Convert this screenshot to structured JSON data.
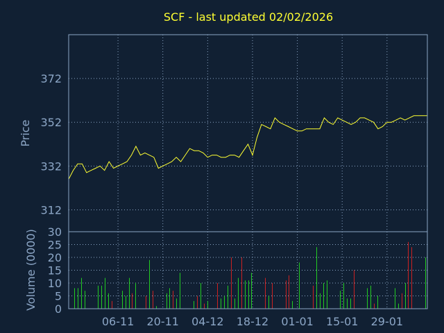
{
  "colors": {
    "background": "#112033",
    "frame": "#8CA6C6",
    "grid": "#8CA6C6",
    "text": "#8CA6C6",
    "title": "#FFFF33",
    "price_line": "#FFFF33",
    "volume_up": "#22CC22",
    "volume_down": "#CC2222"
  },
  "chart_data": [
    {
      "type": "line",
      "title": "SCF - last updated 02/02/2026",
      "xlabel": "",
      "ylabel": "Price",
      "ylim": [
        302,
        392
      ],
      "yticks": [
        312,
        332,
        352,
        372
      ],
      "grid": true,
      "x_ticks": [
        {
          "label": "06-11",
          "index": 11
        },
        {
          "label": "20-11",
          "index": 21
        },
        {
          "label": "04-12",
          "index": 31
        },
        {
          "label": "18-12",
          "index": 41
        },
        {
          "label": "01-01",
          "index": 51
        },
        {
          "label": "15-01",
          "index": 61
        },
        {
          "label": "29-01",
          "index": 71
        }
      ],
      "series": [
        {
          "values": [
            326,
            330,
            333,
            333,
            329,
            330,
            331,
            332,
            330,
            334,
            331,
            332,
            333,
            334,
            337,
            341,
            337,
            338,
            337,
            336,
            331,
            332,
            333,
            334,
            336,
            334,
            337,
            340,
            339,
            339,
            338,
            336,
            337,
            337,
            336,
            336,
            337,
            337,
            336,
            339,
            342,
            337,
            345,
            351,
            350,
            349,
            354,
            352,
            351,
            350,
            349,
            348,
            348,
            349,
            349,
            349,
            349,
            354,
            352,
            351,
            354,
            353,
            352,
            351,
            352,
            354,
            354,
            353,
            352,
            349,
            350,
            352,
            352,
            353,
            354,
            353,
            354,
            355,
            355,
            355,
            355
          ]
        }
      ]
    },
    {
      "type": "bar",
      "xlabel": "",
      "ylabel": "Volume (0000)",
      "ylim": [
        0,
        30
      ],
      "yticks": [
        0,
        5,
        10,
        15,
        20,
        25
      ],
      "ytop_label": "30",
      "grid": true,
      "series": [
        {
          "name": "volume",
          "values": [
            0,
            8,
            8,
            12,
            7,
            0,
            0,
            0,
            9,
            9,
            12,
            6,
            3,
            0,
            0,
            7,
            5,
            12,
            6,
            10,
            0,
            0,
            5,
            19,
            7,
            1,
            0,
            0,
            6,
            8,
            7,
            4,
            14,
            0,
            0,
            0,
            3,
            5,
            10,
            2,
            3,
            0,
            0,
            10,
            4,
            5,
            9,
            20,
            4,
            12,
            20,
            11,
            11,
            14,
            0,
            0,
            0,
            12,
            5,
            10,
            0,
            0,
            0,
            11,
            13,
            3,
            0,
            18,
            0,
            0,
            0,
            9,
            24,
            6,
            10,
            11,
            0,
            0,
            0,
            7,
            10,
            4,
            4,
            15,
            0,
            0,
            0,
            8,
            9,
            2,
            5,
            0,
            0,
            0,
            0,
            8,
            2,
            6,
            10,
            26,
            24,
            0,
            0,
            0,
            20
          ],
          "direction": [
            "u",
            "u",
            "u",
            "u",
            "u",
            "u",
            "u",
            "u",
            "u",
            "u",
            "u",
            "u",
            "d",
            "u",
            "u",
            "u",
            "u",
            "u",
            "d",
            "u",
            "u",
            "u",
            "d",
            "u",
            "d",
            "u",
            "u",
            "u",
            "u",
            "u",
            "d",
            "u",
            "u",
            "u",
            "u",
            "u",
            "u",
            "d",
            "u",
            "d",
            "u",
            "u",
            "u",
            "d",
            "u",
            "u",
            "u",
            "d",
            "u",
            "u",
            "d",
            "u",
            "u",
            "u",
            "u",
            "u",
            "u",
            "d",
            "u",
            "d",
            "u",
            "u",
            "u",
            "d",
            "d",
            "u",
            "u",
            "u",
            "u",
            "u",
            "u",
            "d",
            "u",
            "u",
            "u",
            "u",
            "u",
            "u",
            "u",
            "u",
            "u",
            "u",
            "u",
            "d",
            "u",
            "u",
            "u",
            "u",
            "u",
            "d",
            "u",
            "u",
            "u",
            "u",
            "u",
            "u",
            "u",
            "d",
            "u",
            "d",
            "d",
            "u",
            "u",
            "u",
            "u"
          ]
        }
      ]
    }
  ]
}
